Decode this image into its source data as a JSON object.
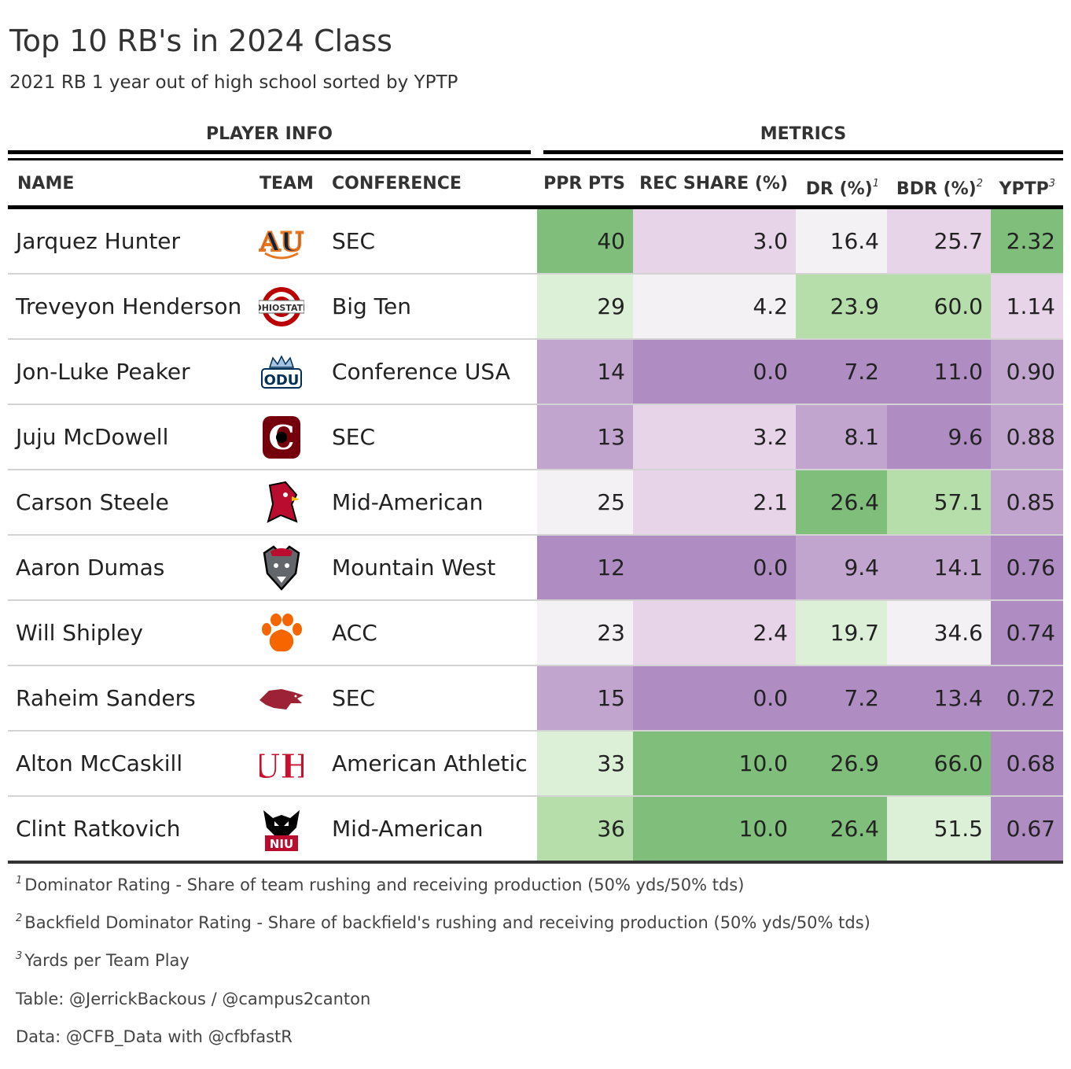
{
  "title": "Top 10 RB's in 2024 Class",
  "subtitle": "2021 RB 1 year out of high school sorted by YPTP",
  "spanners": {
    "player_info": "PLAYER INFO",
    "metrics": "METRICS"
  },
  "columns": {
    "name": "NAME",
    "team": "TEAM",
    "conference": "CONFERENCE",
    "ppr": "PPR PTS",
    "rec_share": "REC SHARE (%)",
    "dr": "DR (%)",
    "dr_mark": "1",
    "bdr": "BDR (%)",
    "bdr_mark": "2",
    "yptp": "YPTP",
    "yptp_mark": "3"
  },
  "colors": {
    "green_dark": "#7fbf7b",
    "green_mid": "#b5deaa",
    "green_light": "#dcefd7",
    "neutral": "#f4f1f5",
    "purple_light": "#e7d4e8",
    "purple_mid": "#c2a5cf",
    "purple_dark": "#af8dc3"
  },
  "chart_data": {
    "type": "table",
    "title": "Top 10 RB's in 2024 Class",
    "subtitle": "2021 RB 1 year out of high school sorted by YPTP",
    "rows": [
      {
        "name": "Jarquez Hunter",
        "team_logo": "auburn-logo",
        "team_abbr": "AU",
        "conference": "SEC",
        "ppr": "40",
        "rec_share": "3.0",
        "dr": "16.4",
        "bdr": "25.7",
        "yptp": "2.32"
      },
      {
        "name": "Treveyon Henderson",
        "team_logo": "ohio-state-logo",
        "team_abbr": "OSU",
        "conference": "Big Ten",
        "ppr": "29",
        "rec_share": "4.2",
        "dr": "23.9",
        "bdr": "60.0",
        "yptp": "1.14"
      },
      {
        "name": "Jon-Luke Peaker",
        "team_logo": "old-dominion-logo",
        "team_abbr": "ODU",
        "conference": "Conference USA",
        "ppr": "14",
        "rec_share": "0.0",
        "dr": "7.2",
        "bdr": "11.0",
        "yptp": "0.90"
      },
      {
        "name": "Juju McDowell",
        "team_logo": "south-carolina-logo",
        "team_abbr": "C",
        "conference": "SEC",
        "ppr": "13",
        "rec_share": "3.2",
        "dr": "8.1",
        "bdr": "9.6",
        "yptp": "0.88"
      },
      {
        "name": "Carson Steele",
        "team_logo": "ball-state-logo",
        "team_abbr": "BSU",
        "conference": "Mid-American",
        "ppr": "25",
        "rec_share": "2.1",
        "dr": "26.4",
        "bdr": "57.1",
        "yptp": "0.85"
      },
      {
        "name": "Aaron Dumas",
        "team_logo": "new-mexico-logo",
        "team_abbr": "UNM",
        "conference": "Mountain West",
        "ppr": "12",
        "rec_share": "0.0",
        "dr": "9.4",
        "bdr": "14.1",
        "yptp": "0.76"
      },
      {
        "name": "Will Shipley",
        "team_logo": "clemson-logo",
        "team_abbr": "CU",
        "conference": "ACC",
        "ppr": "23",
        "rec_share": "2.4",
        "dr": "19.7",
        "bdr": "34.6",
        "yptp": "0.74"
      },
      {
        "name": "Raheim Sanders",
        "team_logo": "arkansas-logo",
        "team_abbr": "ARK",
        "conference": "SEC",
        "ppr": "15",
        "rec_share": "0.0",
        "dr": "7.2",
        "bdr": "13.4",
        "yptp": "0.72"
      },
      {
        "name": "Alton McCaskill",
        "team_logo": "houston-logo",
        "team_abbr": "UH",
        "conference": "American Athletic",
        "ppr": "33",
        "rec_share": "10.0",
        "dr": "26.9",
        "bdr": "66.0",
        "yptp": "0.68"
      },
      {
        "name": "Clint Ratkovich",
        "team_logo": "niu-logo",
        "team_abbr": "NIU",
        "conference": "Mid-American",
        "ppr": "36",
        "rec_share": "10.0",
        "dr": "26.4",
        "bdr": "51.5",
        "yptp": "0.67"
      }
    ],
    "cell_colors": {
      "ppr": [
        "green_dark",
        "green_light",
        "purple_mid",
        "purple_mid",
        "neutral",
        "purple_dark",
        "neutral",
        "purple_mid",
        "green_light",
        "green_mid"
      ],
      "rec_share": [
        "purple_light",
        "neutral",
        "purple_dark",
        "purple_light",
        "purple_light",
        "purple_dark",
        "purple_light",
        "purple_dark",
        "green_dark",
        "green_dark"
      ],
      "dr": [
        "neutral",
        "green_mid",
        "purple_dark",
        "purple_mid",
        "green_dark",
        "purple_mid",
        "green_light",
        "purple_dark",
        "green_dark",
        "green_dark"
      ],
      "bdr": [
        "purple_light",
        "green_mid",
        "purple_dark",
        "purple_dark",
        "green_mid",
        "purple_mid",
        "neutral",
        "purple_dark",
        "green_dark",
        "green_light"
      ],
      "yptp": [
        "green_dark",
        "purple_light",
        "purple_mid",
        "purple_mid",
        "purple_mid",
        "purple_dark",
        "purple_dark",
        "purple_dark",
        "purple_dark",
        "purple_dark"
      ]
    }
  },
  "footnotes": [
    {
      "mark": "1",
      "text": "Dominator Rating - Share of team rushing and receiving production (50% yds/50% tds)"
    },
    {
      "mark": "2",
      "text": "Backfield Dominator Rating - Share of backfield's rushing and receiving production (50% yds/50% tds)"
    },
    {
      "mark": "3",
      "text": "Yards per Team Play"
    }
  ],
  "source_notes": [
    "Table: @JerrickBackous / @campus2canton",
    "Data: @CFB_Data with @cfbfastR"
  ]
}
